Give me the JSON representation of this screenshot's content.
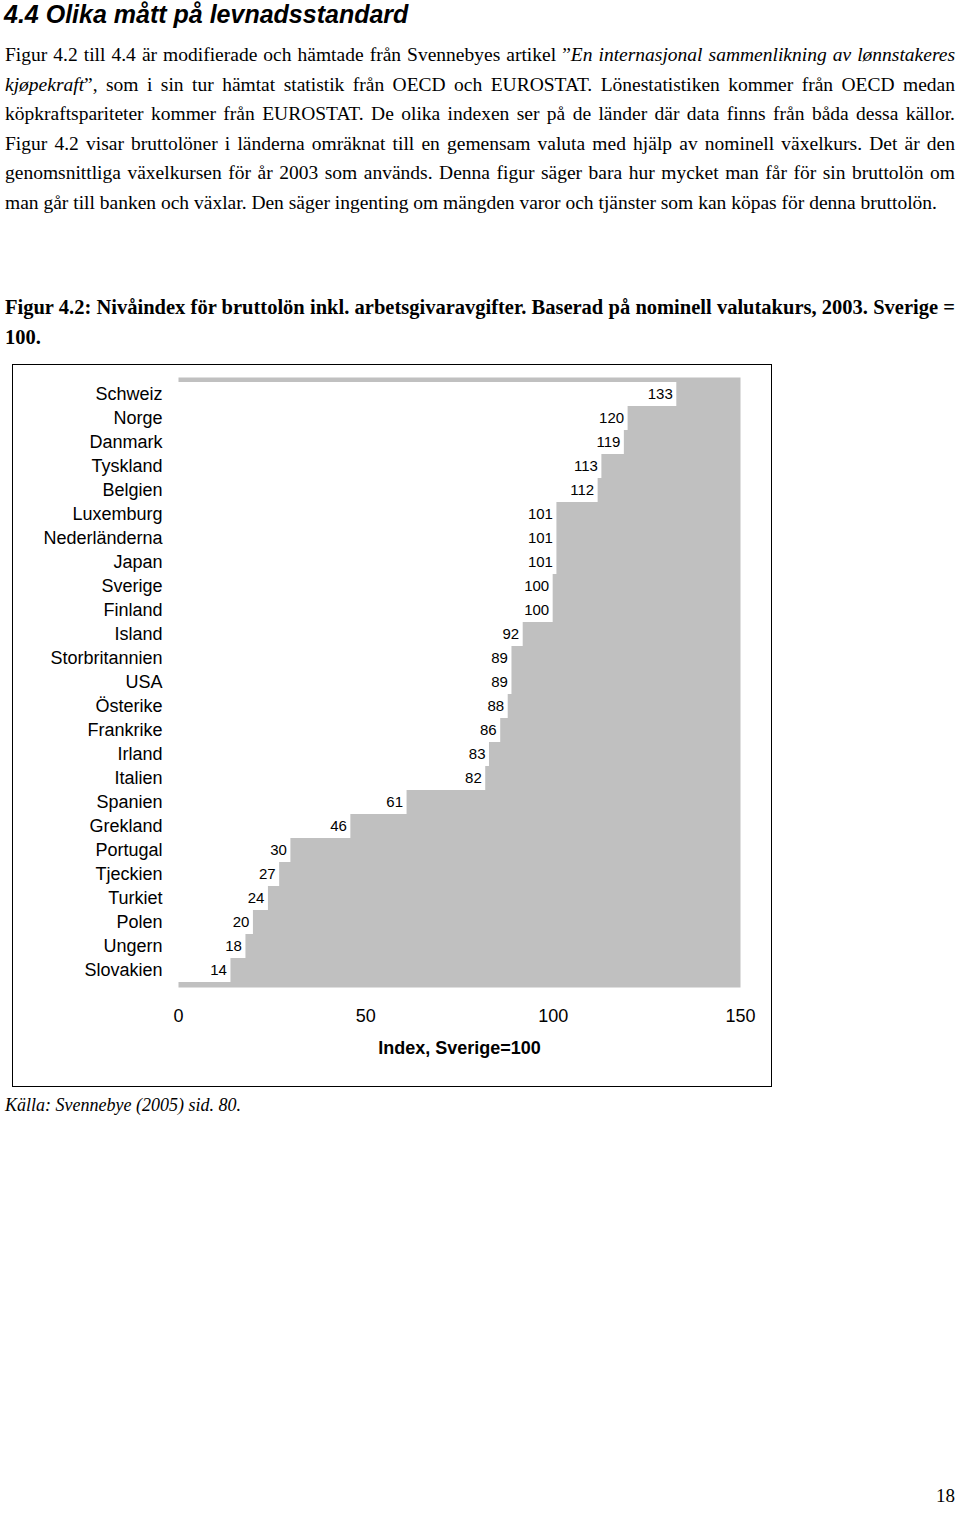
{
  "heading": "4.4 Olika mått på levnadsstandard",
  "paragraph": [
    {
      "text": "Figur 4.2 till 4.4 är modifierade och hämtade från Svennebyes artikel ”",
      "italic": false
    },
    {
      "text": "En internasjonal sammenlikning av lønnstakeres kjøpekraft",
      "italic": true
    },
    {
      "text": "”, som i sin tur hämtat statistik från OECD och EUROSTAT. Lönestatistiken kommer från OECD medan köpkraftspariteter kommer från EUROSTAT. De olika indexen ser på de länder där data finns från båda dessa källor. Figur 4.2 visar bruttolöner i länderna omräknat till en gemensam valuta med hjälp av nominell växelkurs. Det är den genomsnittliga växelkursen för år 2003 som används. Denna figur säger bara hur mycket man får för sin bruttolön om man går till banken och växlar. Den säger ingenting om mängden varor och tjänster som kan köpas för denna bruttolön.",
      "italic": false
    }
  ],
  "figure_caption": "Figur 4.2: Nivåindex för bruttolön inkl. arbetsgivaravgifter. Baserad på nominell valutakurs, 2003. Sverige = 100.",
  "chart_data": {
    "type": "bar",
    "orientation": "horizontal",
    "categories": [
      "Schweiz",
      "Norge",
      "Danmark",
      "Tyskland",
      "Belgien",
      "Luxemburg",
      "Nederländerna",
      "Japan",
      "Sverige",
      "Finland",
      "Island",
      "Storbritannien",
      "USA",
      "Österike",
      "Frankrike",
      "Irland",
      "Italien",
      "Spanien",
      "Grekland",
      "Portugal",
      "Tjeckien",
      "Turkiet",
      "Polen",
      "Ungern",
      "Slovakien"
    ],
    "values": [
      133,
      120,
      119,
      113,
      112,
      101,
      101,
      101,
      100,
      100,
      92,
      89,
      89,
      88,
      86,
      83,
      82,
      61,
      46,
      30,
      27,
      24,
      20,
      18,
      14
    ],
    "color": "#ffffff",
    "xlabel": "Index, Sverige=100",
    "xlim": [
      0,
      150
    ],
    "xticks": [
      0,
      50,
      100,
      150
    ],
    "grid": false,
    "data_labels": true
  },
  "source": "Källa: Svennebye (2005) sid. 80.",
  "page_number": "18"
}
